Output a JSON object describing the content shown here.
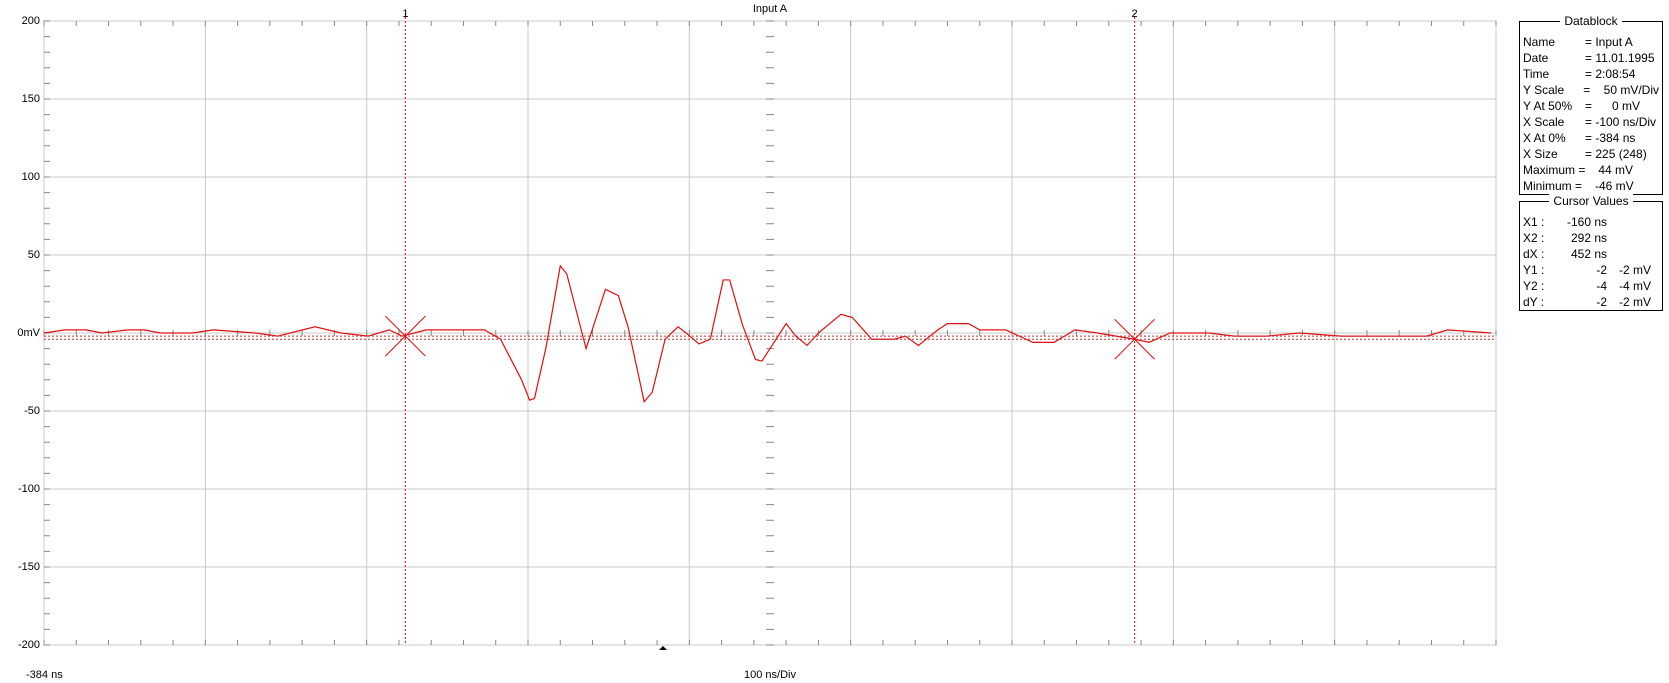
{
  "chart_data": {
    "type": "line",
    "title": "Input A",
    "x_start_label": "-384 ns",
    "x_scale_label": "100 ns/Div",
    "x": [
      -384,
      -371,
      -358,
      -348,
      -332,
      -322,
      -312,
      -292,
      -279,
      -253,
      -239,
      -216,
      -200,
      -183,
      -170,
      -162,
      -147,
      -111,
      -101,
      -88,
      -83,
      -80,
      -73,
      -64,
      -60,
      -48,
      -36,
      -28,
      -22,
      -12,
      -7,
      1,
      9,
      14,
      22,
      29,
      37,
      41,
      49,
      57,
      61,
      76,
      82,
      89,
      96,
      110,
      117,
      129,
      143,
      150,
      158,
      170,
      176,
      189,
      196,
      212,
      229,
      242,
      255,
      269,
      292,
      301,
      314,
      338,
      354,
      374,
      394,
      420,
      447,
      473,
      486,
      513
    ],
    "series": [
      {
        "name": "Input A",
        "color": "#e01010",
        "values": [
          0,
          2,
          2,
          0,
          2,
          2,
          0,
          0,
          2,
          0,
          -2,
          4,
          0,
          -2,
          2,
          -2,
          2,
          2,
          -4,
          -30,
          -43,
          -42,
          -10,
          43,
          38,
          -10,
          28,
          24,
          4,
          -44,
          -38,
          -4,
          4,
          0,
          -7,
          -4,
          34,
          34,
          5,
          -17,
          -18,
          6,
          -2,
          -8,
          0,
          12,
          10,
          -4,
          -4,
          -2,
          -8,
          2,
          6,
          6,
          2,
          2,
          -6,
          -6,
          2,
          0,
          -4,
          -6,
          0,
          0,
          -2,
          -2,
          0,
          -2,
          -2,
          -2,
          2,
          0
        ]
      }
    ],
    "xlim": [
      -384,
      516
    ],
    "xticks": [
      -384,
      -284,
      -184,
      -84,
      16,
      116,
      216,
      316,
      416,
      516
    ],
    "ylim": [
      -200,
      200
    ],
    "yticks": [
      -200,
      -150,
      -100,
      -50,
      {
        "value": 0,
        "label": "0mV"
      },
      50,
      100,
      150,
      200
    ],
    "grid": true,
    "cursors": [
      {
        "label": "1",
        "x": -160,
        "y": -2
      },
      {
        "label": "2",
        "x": 292,
        "y": -4
      }
    ]
  },
  "datablock": {
    "title": "Datablock",
    "rows": [
      [
        "Name",
        "= Input A"
      ],
      [
        "Date",
        "= 11.01.1995"
      ],
      [
        "Time",
        "= 2:08:54"
      ],
      [
        "Y Scale",
        "=    50 mV/Div"
      ],
      [
        "Y At 50%",
        "=      0 mV"
      ],
      [
        "X Scale",
        "= -100 ns/Div"
      ],
      [
        "X At 0%",
        "= -384 ns"
      ],
      [
        "X Size",
        "= 225 (248)"
      ],
      [
        "Maximum =",
        "    44 mV"
      ],
      [
        "Minimum =",
        "   -46 mV"
      ]
    ]
  },
  "cursor_values": {
    "title": "Cursor Values",
    "rows": [
      [
        "X1 :",
        "-160 ns",
        ""
      ],
      [
        "X2 :",
        "292 ns",
        ""
      ],
      [
        "dX :",
        "452 ns",
        ""
      ],
      [
        "Y1 :",
        "-2",
        "-2 mV"
      ],
      [
        "Y2 :",
        "-4",
        "-4 mV"
      ],
      [
        "dY :",
        "-2",
        "-2 mV"
      ]
    ]
  }
}
